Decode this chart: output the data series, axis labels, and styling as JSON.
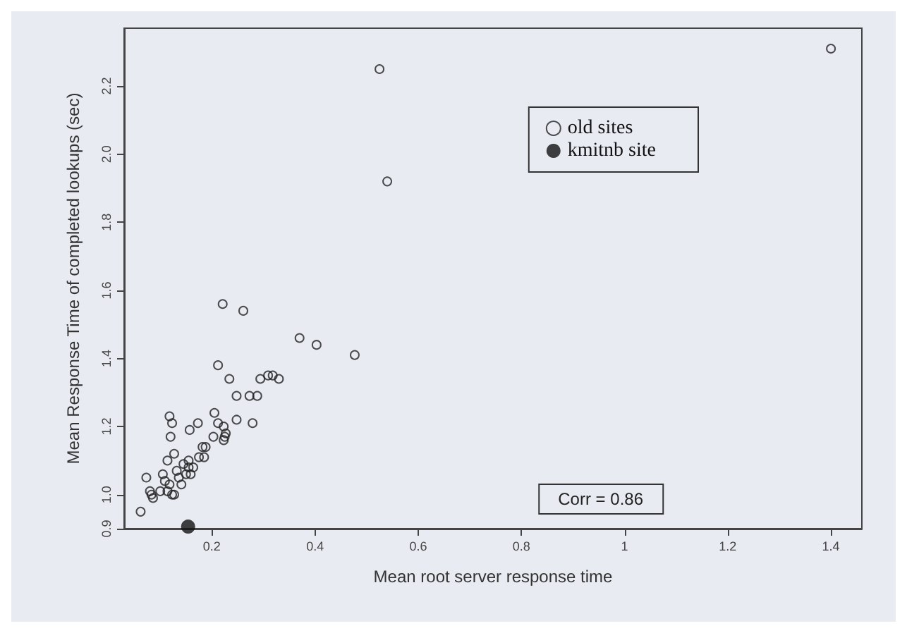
{
  "chart_data": {
    "type": "scatter",
    "xlabel": "Mean root server response time",
    "ylabel": "Mean Response Time of completed lookups (sec)",
    "xlim": [
      0.03,
      1.46
    ],
    "ylim": [
      0.9,
      2.37
    ],
    "xticks": [
      0.2,
      0.4,
      0.6,
      0.8,
      1.0,
      1.2,
      1.4
    ],
    "yticks": [
      {
        "value": 0.9,
        "label": "0.9"
      },
      {
        "value": 1.0,
        "label": "1.0"
      },
      {
        "value": 1.2,
        "label": "1.2"
      },
      {
        "value": 1.4,
        "label": "1.4"
      },
      {
        "value": 1.6,
        "label": "1.6"
      },
      {
        "value": 1.8,
        "label": "1.8"
      },
      {
        "value": 2.0,
        "label": "2.0"
      },
      {
        "value": 2.2,
        "label": "2.2"
      }
    ],
    "grid": false,
    "legend": "top right",
    "marker": "circle",
    "annotations": [
      "Corr = 0.86"
    ],
    "series": [
      {
        "name": "old sites",
        "color": "#222222",
        "x": [
          0.062,
          0.073,
          0.08,
          0.083,
          0.086,
          0.1,
          0.105,
          0.109,
          0.114,
          0.114,
          0.118,
          0.123,
          0.12,
          0.123,
          0.127,
          0.127,
          0.118,
          0.132,
          0.136,
          0.141,
          0.145,
          0.15,
          0.155,
          0.159,
          0.155,
          0.157,
          0.164,
          0.173,
          0.175,
          0.182,
          0.188,
          0.185,
          0.203,
          0.205,
          0.212,
          0.212,
          0.221,
          0.223,
          0.225,
          0.227,
          0.223,
          0.234,
          0.248,
          0.248,
          0.261,
          0.273,
          0.279,
          0.288,
          0.294,
          0.309,
          0.318,
          0.33,
          0.37,
          0.403,
          0.477,
          0.525,
          0.54,
          1.4
        ],
        "values": [
          0.95,
          1.05,
          1.01,
          1.0,
          0.99,
          1.01,
          1.06,
          1.04,
          1.01,
          1.1,
          1.23,
          1.21,
          1.17,
          1.0,
          1.0,
          1.12,
          1.03,
          1.07,
          1.05,
          1.03,
          1.09,
          1.06,
          1.08,
          1.06,
          1.1,
          1.19,
          1.08,
          1.21,
          1.11,
          1.14,
          1.14,
          1.11,
          1.17,
          1.24,
          1.21,
          1.38,
          1.56,
          1.2,
          1.17,
          1.18,
          1.16,
          1.34,
          1.29,
          1.22,
          1.54,
          1.29,
          1.21,
          1.29,
          1.34,
          1.35,
          1.35,
          1.34,
          1.46,
          1.44,
          1.41,
          2.25,
          1.92,
          2.31
        ]
      },
      {
        "name": "kmitnb site",
        "color": "#111111",
        "x": [
          0.154
        ],
        "values": [
          0.906
        ]
      }
    ]
  }
}
